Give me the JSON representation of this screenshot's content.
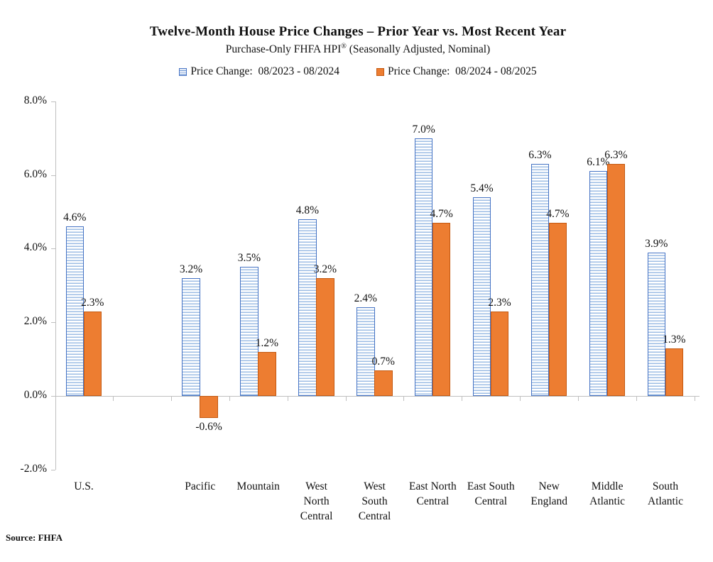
{
  "title": "Twelve-Month House Price Changes – Prior Year vs. Most Recent Year",
  "subtitle": {
    "text": "Purchase-Only FHFA HPI",
    "registered": "®",
    "text2": " (Seasonally Adjusted, Nominal)"
  },
  "source_note": "Source: FHFA",
  "colors": {
    "prior_border": "#4472C4",
    "prior_stripe": "#9dbde4",
    "recent_fill": "#ED7D31",
    "recent_border": "#C45911",
    "axis": "#BFBFBF",
    "text": "#111111"
  },
  "chart_data": {
    "type": "bar",
    "categories": [
      "U.S.",
      "Pacific",
      "Mountain",
      "West North Central",
      "West South Central",
      "East North Central",
      "East South Central",
      "New England",
      "Middle Atlantic",
      "South Atlantic"
    ],
    "category_label_lines": [
      [
        "U.S."
      ],
      [
        "Pacific"
      ],
      [
        "Mountain"
      ],
      [
        "West",
        "North",
        "Central"
      ],
      [
        "West",
        "South",
        "Central"
      ],
      [
        "East North",
        "Central"
      ],
      [
        "East South",
        "Central"
      ],
      [
        "New",
        "England"
      ],
      [
        "Middle",
        "Atlantic"
      ],
      [
        "South",
        "Atlantic"
      ]
    ],
    "series": [
      {
        "name": "Price Change:  08/2023 - 08/2024",
        "values": [
          4.6,
          3.2,
          3.5,
          4.8,
          2.4,
          7.0,
          5.4,
          6.3,
          6.1,
          3.9
        ]
      },
      {
        "name": "Price Change:  08/2024 - 08/2025",
        "values": [
          2.3,
          -0.6,
          1.2,
          3.2,
          0.7,
          4.7,
          2.3,
          4.7,
          6.3,
          1.3
        ]
      }
    ],
    "title": "Twelve-Month House Price Changes – Prior Year vs. Most Recent Year",
    "xlabel": "",
    "ylabel": "",
    "ylim": [
      -2,
      8
    ],
    "ytick_labels": [
      "8.0%",
      "6.0%",
      "4.0%",
      "2.0%",
      "0.0%",
      "-2.0%"
    ],
    "ytick_values": [
      8,
      6,
      4,
      2,
      0,
      -2
    ],
    "grid": "off",
    "legend_position": "top",
    "data_labels": true,
    "gap_slot_after_first_category": true
  }
}
